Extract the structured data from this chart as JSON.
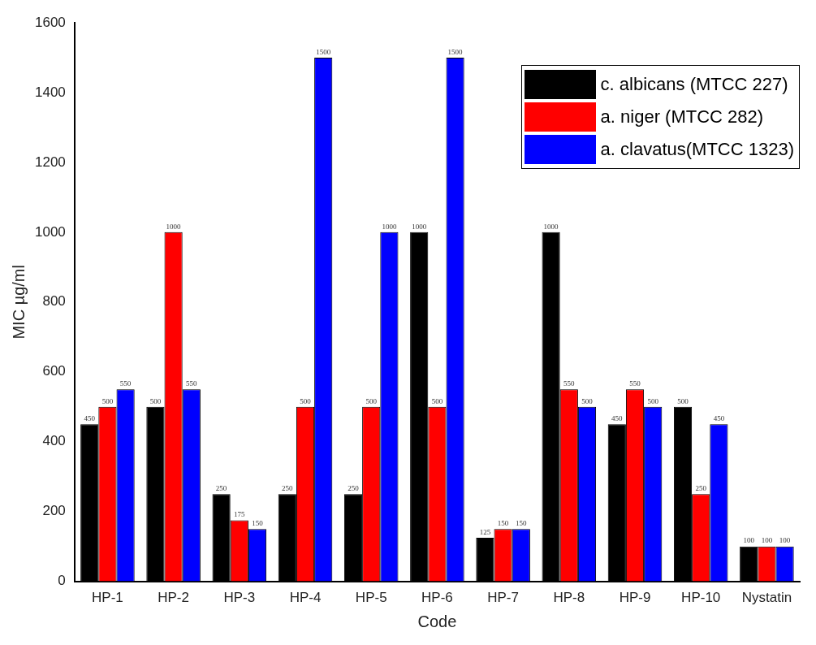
{
  "chart_data": {
    "type": "bar",
    "xlabel": "Code",
    "ylabel": "MIC µg/ml",
    "categories": [
      "HP-1",
      "HP-2",
      "HP-3",
      "HP-4",
      "HP-5",
      "HP-6",
      "HP-7",
      "HP-8",
      "HP-9",
      "HP-10",
      "Nystatin"
    ],
    "series": [
      {
        "name": "c. albicans (MTCC 227)",
        "color": "#000000",
        "values": [
          450,
          500,
          250,
          250,
          250,
          1000,
          125,
          1000,
          450,
          500,
          100
        ]
      },
      {
        "name": "a. niger (MTCC 282)",
        "color": "#ff0000",
        "values": [
          500,
          1000,
          175,
          500,
          500,
          500,
          150,
          550,
          550,
          250,
          100
        ]
      },
      {
        "name": "a. clavatus(MTCC 1323)",
        "color": "#0000ff",
        "values": [
          550,
          550,
          150,
          1500,
          1000,
          1500,
          150,
          500,
          500,
          450,
          100
        ]
      }
    ],
    "ylim": [
      0,
      1600
    ],
    "yticks": [
      0,
      200,
      400,
      600,
      800,
      1000,
      1200,
      1400,
      1600
    ],
    "data_labels": true,
    "legend": "top right",
    "grid": false
  }
}
